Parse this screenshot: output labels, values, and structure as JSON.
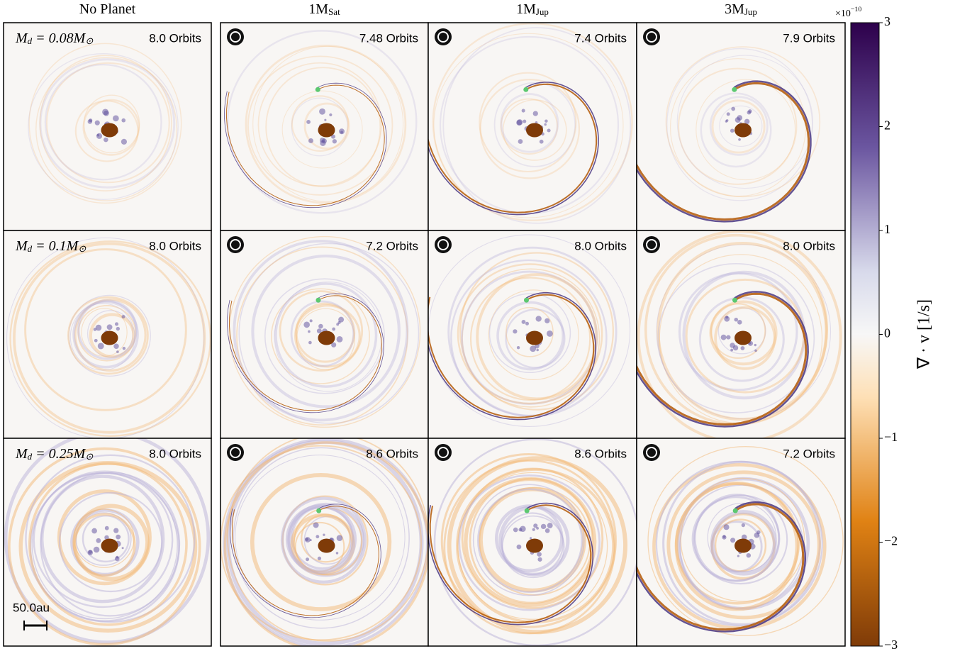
{
  "columns": [
    [
      {
        "t": "No Planet"
      }
    ],
    [
      {
        "t": "1M"
      },
      {
        "sub": "Sat"
      }
    ],
    [
      {
        "t": "1M"
      },
      {
        "sub": "Jup"
      }
    ],
    [
      {
        "t": "3M"
      },
      {
        "sub": "Jup"
      }
    ]
  ],
  "rows": [
    {
      "label": [
        {
          "t": "M"
        },
        {
          "sub": "d"
        },
        {
          "t": " = 0.08M"
        },
        {
          "sub": "⊙"
        }
      ],
      "orbits": [
        "8.0 Orbits",
        "7.48 Orbits",
        "7.4 Orbits",
        "7.9 Orbits"
      ]
    },
    {
      "label": [
        {
          "t": "M"
        },
        {
          "sub": "d"
        },
        {
          "t": " = 0.1M"
        },
        {
          "sub": "⊙"
        }
      ],
      "orbits": [
        "8.0 Orbits",
        "7.2 Orbits",
        "8.0 Orbits",
        "8.0 Orbits"
      ]
    },
    {
      "label": [
        {
          "t": "M"
        },
        {
          "sub": "d"
        },
        {
          "t": " = 0.25M"
        },
        {
          "sub": "⊙"
        }
      ],
      "orbits": [
        "8.0 Orbits",
        "8.6 Orbits",
        "8.6 Orbits",
        "7.2 Orbits"
      ]
    }
  ],
  "scale_bar": "50.0au",
  "colorbar": {
    "label": "∇ · v [1/s]",
    "exponent": [
      {
        "t": "×10"
      },
      {
        "sup": "−10"
      }
    ],
    "lim": [
      -3,
      3
    ],
    "ticks": [
      {
        "value": -3,
        "label": "−3"
      },
      {
        "value": -2,
        "label": "−2"
      },
      {
        "value": -1,
        "label": "−1"
      },
      0,
      1,
      2,
      3
    ]
  }
}
